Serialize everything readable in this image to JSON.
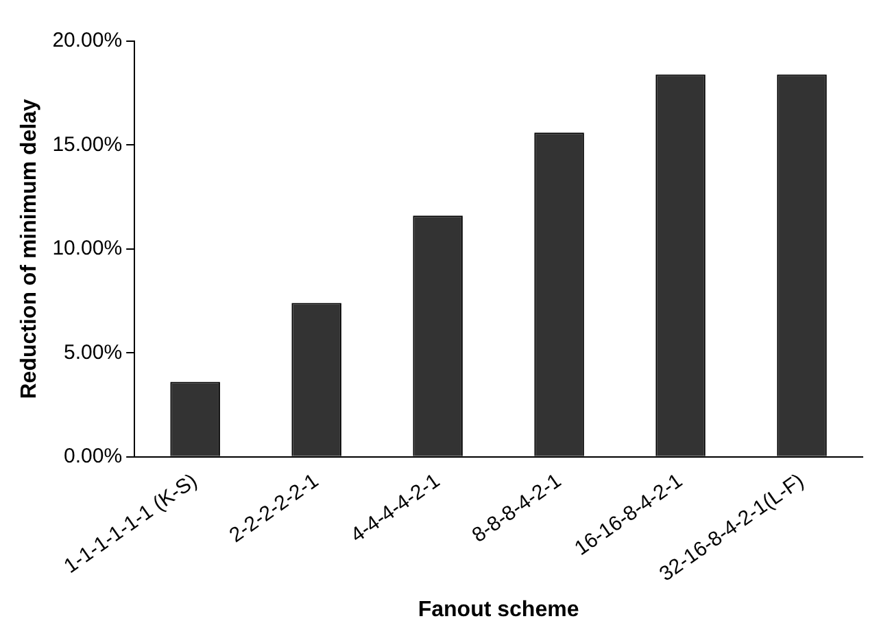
{
  "chart_data": {
    "type": "bar",
    "xlabel": "Fanout scheme",
    "ylabel": "Reduction of minimum delay",
    "categories": [
      "1-1-1-1-1-1 (K-S)",
      "2-2-2-2-2-1",
      "4-4-4-4-2-1",
      "8-8-8-4-2-1",
      "16-16-8-4-2-1",
      "32-16-8-4-2-1(L-F)"
    ],
    "values": [
      3.6,
      7.4,
      11.6,
      15.6,
      18.4,
      18.4
    ],
    "color": "#333333",
    "ylim": [
      0,
      20
    ],
    "yticks": [
      {
        "value": 0,
        "label": "0.00%"
      },
      {
        "value": 5,
        "label": "5.00%"
      },
      {
        "value": 10,
        "label": "10.00%"
      },
      {
        "value": 15,
        "label": "15.00%"
      },
      {
        "value": 20,
        "label": "20.00%"
      }
    ],
    "grid": false,
    "legend": false
  }
}
